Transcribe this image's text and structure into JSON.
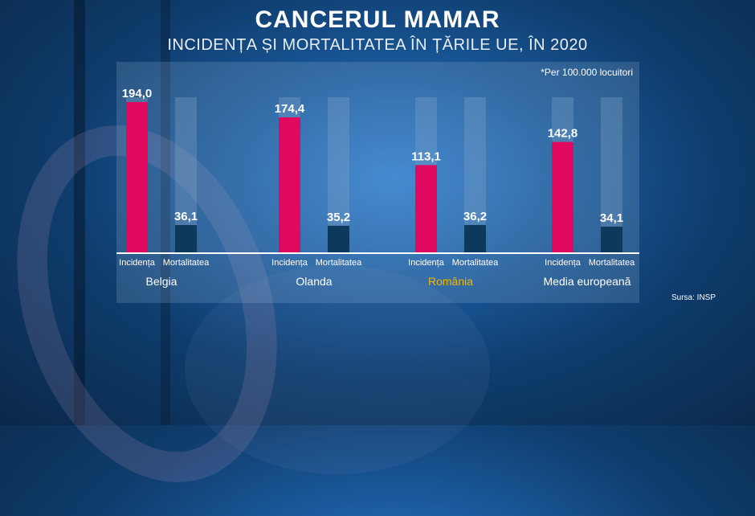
{
  "title": "CANCERUL MAMAR",
  "subtitle": "INCIDENȚA ȘI MORTALITATEA ÎN ȚĂRILE UE, ÎN 2020",
  "note": "*Per 100.000 locuitori",
  "source": "Sursa: INSP",
  "colors": {
    "incidence": "#e0095f",
    "mortality": "#0d3a5c",
    "track": "#7fa2c8",
    "highlight": "#f2b800",
    "text": "#ffffff"
  },
  "chart_data": {
    "type": "bar",
    "title": "CANCERUL MAMAR",
    "subtitle": "INCIDENȚA ȘI MORTALITATEA ÎN ȚĂRILE UE, ÎN 2020",
    "categories": [
      "Belgia",
      "Olanda",
      "România",
      "Media europeană"
    ],
    "highlighted_category": "România",
    "bar_labels": [
      "Incidența",
      "Mortalitatea"
    ],
    "series": [
      {
        "name": "Incidența",
        "values": [
          194.0,
          174.4,
          113.1,
          142.8
        ],
        "labels": [
          "194,0",
          "174,4",
          "113,1",
          "142,8"
        ]
      },
      {
        "name": "Mortalitatea",
        "values": [
          36.1,
          35.2,
          36.2,
          34.1
        ],
        "labels": [
          "36,1",
          "35,2",
          "36,2",
          "34,1"
        ]
      }
    ],
    "ylim": [
      0,
      194
    ],
    "grid": false,
    "legend": "none"
  }
}
